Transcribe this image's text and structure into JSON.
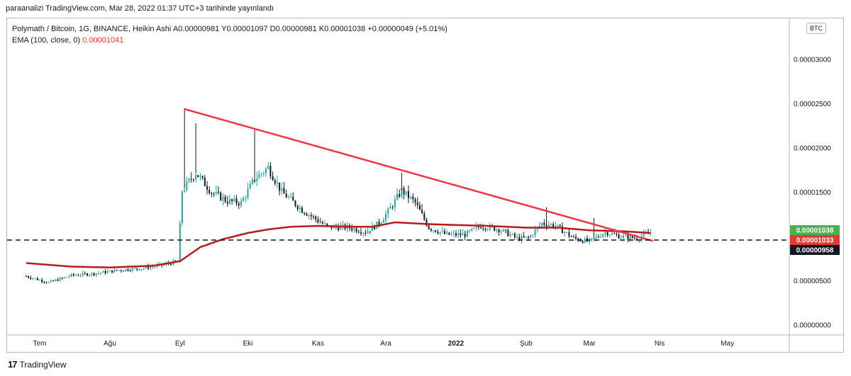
{
  "header": {
    "published": "paraanalizi TradingView.com, Mar 28, 2022 01:37 UTC+3 tarihinde yayınlandı"
  },
  "legend": {
    "symbol_line": "Polymath / Bitcoin, 1G, BINANCE, Heikin Ashi",
    "ohlc": "A0.00000981  Y0.00001097  D0.00000981  K0.00001038  +0.00000049 (+5.01%)",
    "ema_label": "EMA (100, close, 0)",
    "ema_value": "0.00001041"
  },
  "currency": "BTC",
  "footer": {
    "brand": "TradingView",
    "mark": "17"
  },
  "colors": {
    "up": "#26a69a",
    "down": "#131722",
    "ema": "#b71c1c",
    "trend": "#f23645",
    "price_badge": "#4caf50"
  },
  "chart_data": {
    "type": "line",
    "xlabel": "",
    "ylabel": "",
    "x_ticks": [
      "Tem",
      "Ağu",
      "Eyl",
      "Eki",
      "Kas",
      "Ara",
      "2022",
      "Şub",
      "Mar",
      "Nis",
      "May"
    ],
    "y_ticks": [
      "0.00003000",
      "0.00002500",
      "0.00002000",
      "0.00001500",
      "0.00001000",
      "0.00000500",
      "0.00000000"
    ],
    "ylim": [
      0,
      3e-05
    ],
    "price_badges": [
      {
        "label": "0.00001038",
        "value": 1.038e-05,
        "color": "#4caf50"
      },
      {
        "label": "0.00001033",
        "value": 1.033e-05,
        "color": "#e53935"
      },
      {
        "label": "0.00000958",
        "value": 9.58e-06,
        "color": "#131722"
      }
    ],
    "series": [
      {
        "name": "EMA (100, close, 0)",
        "x": [
          "2021-06-25",
          "2021-07-15",
          "2021-08-01",
          "2021-08-20",
          "2021-09-01",
          "2021-09-10",
          "2021-09-20",
          "2021-10-01",
          "2021-10-10",
          "2021-10-20",
          "2021-11-01",
          "2021-11-15",
          "2021-11-25",
          "2021-12-05",
          "2021-12-20",
          "2022-01-01",
          "2022-01-15",
          "2022-02-01",
          "2022-02-15",
          "2022-03-01",
          "2022-03-15",
          "2022-03-28"
        ],
        "y": [
          7e-06,
          6.6e-06,
          6.5e-06,
          6.7e-06,
          7.2e-06,
          8.8e-06,
          9.7e-06,
          1.04e-05,
          1.08e-05,
          1.11e-05,
          1.12e-05,
          1.11e-05,
          1.11e-05,
          1.16e-05,
          1.14e-05,
          1.13e-05,
          1.12e-05,
          1.1e-05,
          1.1e-05,
          1.07e-05,
          1.06e-05,
          1.04e-05
        ]
      },
      {
        "name": "Close (Heikin Ashi)",
        "x": [
          "2021-06-25",
          "2021-07-05",
          "2021-07-15",
          "2021-07-25",
          "2021-08-05",
          "2021-08-15",
          "2021-08-25",
          "2021-08-31",
          "2021-09-02",
          "2021-09-08",
          "2021-09-15",
          "2021-09-22",
          "2021-09-28",
          "2021-10-04",
          "2021-10-10",
          "2021-10-16",
          "2021-10-25",
          "2021-11-05",
          "2021-11-15",
          "2021-11-22",
          "2021-11-28",
          "2021-12-02",
          "2021-12-08",
          "2021-12-14",
          "2021-12-20",
          "2021-12-28",
          "2022-01-05",
          "2022-01-12",
          "2022-01-20",
          "2022-01-28",
          "2022-02-02",
          "2022-02-08",
          "2022-02-14",
          "2022-02-22",
          "2022-03-01",
          "2022-03-08",
          "2022-03-15",
          "2022-03-22",
          "2022-03-28"
        ],
        "y": [
          5.5e-06,
          4.8e-06,
          5.6e-06,
          5.8e-06,
          6.2e-06,
          6.4e-06,
          6.8e-06,
          7.2e-06,
          1.52e-05,
          1.72e-05,
          1.5e-05,
          1.4e-05,
          1.38e-05,
          1.65e-05,
          1.78e-05,
          1.5e-05,
          1.3e-05,
          1.11e-05,
          1.1e-05,
          1.05e-05,
          1.15e-05,
          1.28e-05,
          1.52e-05,
          1.38e-05,
          1.1e-05,
          1.02e-05,
          1.02e-05,
          1.12e-05,
          1.08e-05,
          9.8e-06,
          9.8e-06,
          1.15e-05,
          1.12e-05,
          9.8e-06,
          9.4e-06,
          1.05e-05,
          1e-05,
          9.8e-06,
          1.038e-05
        ]
      },
      {
        "name": "Trendline",
        "x": [
          "2021-09-03",
          "2022-03-29"
        ],
        "y": [
          2.44e-05,
          9.5e-06
        ]
      },
      {
        "name": "Support",
        "x": [
          "2021-06-25",
          "2022-05-25"
        ],
        "y": [
          9.6e-06,
          9.6e-06
        ]
      }
    ]
  }
}
